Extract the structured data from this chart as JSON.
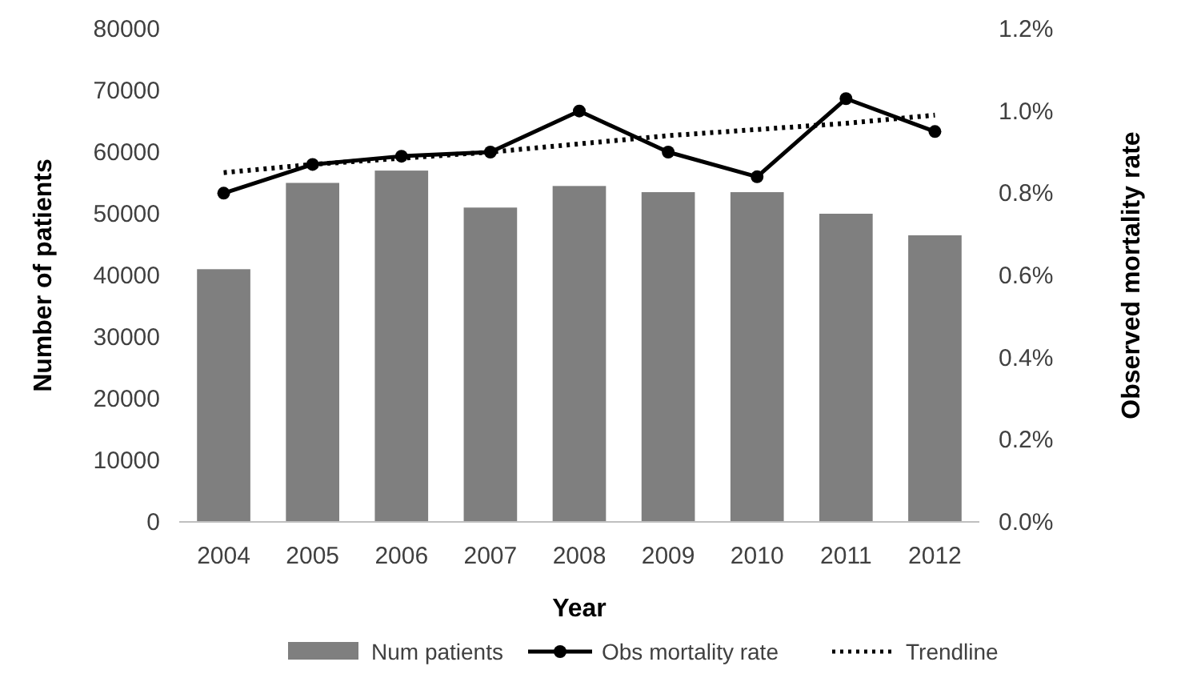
{
  "chart_data": {
    "type": "bar",
    "xlabel": "Year",
    "ylabel": "Number of patients",
    "y2label": "Observed mortality rate",
    "categories": [
      "2004",
      "2005",
      "2006",
      "2007",
      "2008",
      "2009",
      "2010",
      "2011",
      "2012"
    ],
    "series": [
      {
        "name": "Num patients",
        "color": "#7f7f7f",
        "values": [
          41000,
          55000,
          57000,
          51000,
          54500,
          53500,
          53500,
          50000,
          46500
        ]
      },
      {
        "name": "Obs mortality rate",
        "type": "line",
        "axis": "y2",
        "color": "#000000",
        "marker": "circle",
        "line_style": "solid",
        "values": [
          0.8,
          0.87,
          0.89,
          0.9,
          1.0,
          0.9,
          0.84,
          1.03,
          0.95
        ]
      },
      {
        "name": "Trendline",
        "type": "line",
        "axis": "y2",
        "color": "#000000",
        "marker": "none",
        "line_style": "dotted",
        "values": [
          0.85,
          0.87,
          0.885,
          0.9,
          0.92,
          0.94,
          0.955,
          0.97,
          0.99
        ]
      }
    ],
    "ylim": [
      0,
      80000
    ],
    "yticks": [
      0,
      10000,
      20000,
      30000,
      40000,
      50000,
      60000,
      70000,
      80000
    ],
    "y2lim": [
      0,
      1.2
    ],
    "y2ticks": [
      {
        "value": 0,
        "label": "0.0%"
      },
      {
        "value": 0.2,
        "label": "0.2%"
      },
      {
        "value": 0.4,
        "label": "0.4%"
      },
      {
        "value": 0.6,
        "label": "0.6%"
      },
      {
        "value": 0.8,
        "label": "0.8%"
      },
      {
        "value": 1.0,
        "label": "1.0%"
      },
      {
        "value": 1.2,
        "label": "1.2%"
      }
    ],
    "grid": false,
    "legend": "bottom"
  }
}
